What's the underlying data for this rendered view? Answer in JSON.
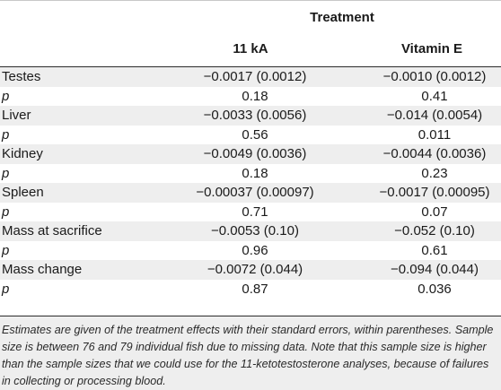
{
  "header": {
    "group_title": "Treatment",
    "col1": "11 kA",
    "col2": "Vitamin E"
  },
  "rows": [
    {
      "label": "Testes",
      "italic": false,
      "v1": "−0.0017 (0.0012)",
      "v2": "−0.0010 (0.0012)"
    },
    {
      "label": "p",
      "italic": true,
      "v1": "0.18",
      "v2": "0.41"
    },
    {
      "label": "Liver",
      "italic": false,
      "v1": "−0.0033 (0.0056)",
      "v2": "−0.014 (0.0054)"
    },
    {
      "label": "p",
      "italic": true,
      "v1": "0.56",
      "v2": "0.011"
    },
    {
      "label": "Kidney",
      "italic": false,
      "v1": "−0.0049 (0.0036)",
      "v2": "−0.0044 (0.0036)"
    },
    {
      "label": "p",
      "italic": true,
      "v1": "0.18",
      "v2": "0.23"
    },
    {
      "label": "Spleen",
      "italic": false,
      "v1": "−0.00037 (0.00097)",
      "v2": "−0.0017 (0.00095)"
    },
    {
      "label": "p",
      "italic": true,
      "v1": "0.71",
      "v2": "0.07"
    },
    {
      "label": "Mass at sacrifice",
      "italic": false,
      "v1": "−0.0053 (0.10)",
      "v2": "−0.052 (0.10)"
    },
    {
      "label": "p",
      "italic": true,
      "v1": "0.96",
      "v2": "0.61"
    },
    {
      "label": "Mass change",
      "italic": false,
      "v1": "−0.0072 (0.044)",
      "v2": "−0.094 (0.044)"
    },
    {
      "label": "p",
      "italic": true,
      "v1": "0.87",
      "v2": "0.036"
    }
  ],
  "footnote": "Estimates are given of the treatment effects with their standard errors, within parentheses. Sample size is between 76 and 79 individual fish due to missing data. Note that this sample size is higher than the sample sizes that we could use for the 11-ketotestosterone analyses, because of failures in collecting or processing blood."
}
